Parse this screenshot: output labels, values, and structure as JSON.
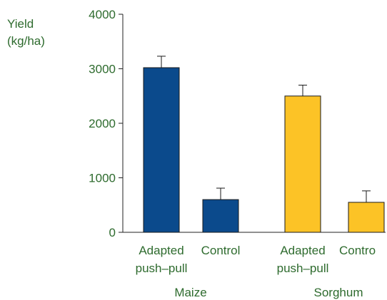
{
  "chart_data": {
    "type": "bar",
    "ylabel_line1": "Yield",
    "ylabel_line2": "(kg/ha)",
    "ylim": [
      0,
      4000
    ],
    "yticks": [
      0,
      1000,
      2000,
      3000,
      4000
    ],
    "categories": [
      {
        "line1": "Adapted",
        "line2": "push–pull",
        "group": "Maize",
        "value": 3020,
        "error": 210,
        "color": "#0b4a8c"
      },
      {
        "line1": "Control",
        "line2": "",
        "group": "Maize",
        "value": 600,
        "error": 210,
        "color": "#0b4a8c"
      },
      {
        "line1": "Adapted",
        "line2": "push–pull",
        "group": "Sorghum",
        "value": 2500,
        "error": 200,
        "color": "#fcc326"
      },
      {
        "line1": "Contro",
        "line2": "",
        "group": "Sorghum",
        "value": 550,
        "error": 210,
        "color": "#fcc326"
      }
    ],
    "groups": [
      "Maize",
      "Sorghum"
    ],
    "colors": {
      "maize": "#0b4a8c",
      "sorghum": "#fcc326",
      "text": "#2e6b2e"
    }
  }
}
